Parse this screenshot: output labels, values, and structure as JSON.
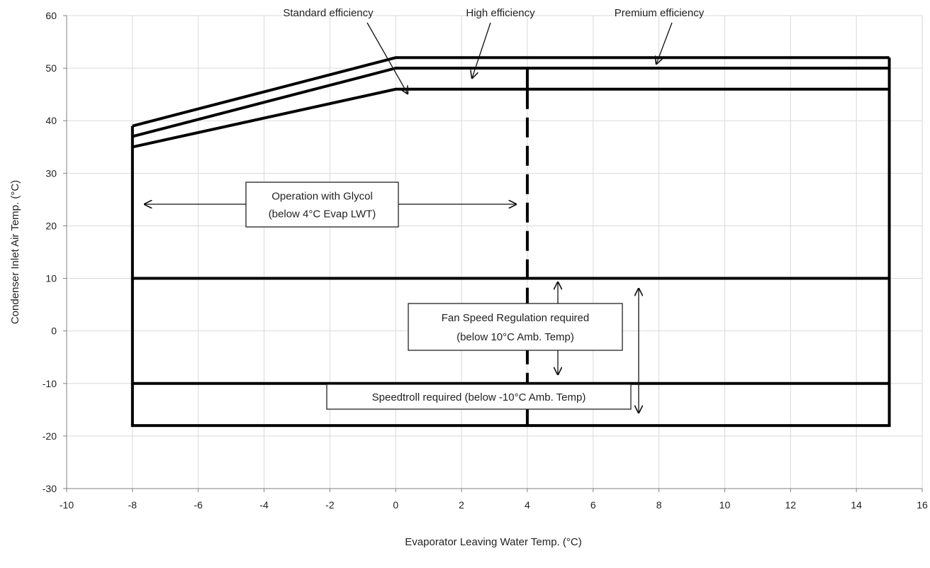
{
  "chart_data": {
    "type": "line",
    "title": "",
    "xlabel": "Evaporator Leaving  Water Temp. (°C)",
    "ylabel": "Condenser Inlet Air Temp. (°C)",
    "xlim": [
      -10,
      16
    ],
    "ylim": [
      -30,
      60
    ],
    "x_ticks": [
      -10,
      -8,
      -6,
      -4,
      -2,
      0,
      2,
      4,
      6,
      8,
      10,
      12,
      14,
      16
    ],
    "y_ticks": [
      -30,
      -20,
      -10,
      0,
      10,
      20,
      30,
      40,
      50,
      60
    ],
    "grid": true,
    "series": [
      {
        "name": "Premium efficiency",
        "points": [
          [
            -8,
            39
          ],
          [
            0,
            52
          ],
          [
            15,
            52
          ]
        ]
      },
      {
        "name": "High efficiency",
        "points": [
          [
            -8,
            37
          ],
          [
            0,
            50
          ],
          [
            15,
            50
          ]
        ]
      },
      {
        "name": "Standard efficiency",
        "points": [
          [
            -8,
            35
          ],
          [
            0,
            46
          ],
          [
            15,
            46
          ]
        ]
      }
    ],
    "envelope": {
      "left_x": -8,
      "right_x": 15,
      "bottom_y": -18,
      "left_top_y": 39,
      "right_top_y": 52
    },
    "divider_lines": [
      {
        "label": "10°C ambient limit",
        "y": 10
      },
      {
        "label": "-10°C ambient limit",
        "y": -10
      }
    ],
    "glycol_boundary_x": 4,
    "annotations": [
      {
        "id": "operation-with-glycol-box",
        "lines": [
          "Operation with Glycol",
          "(below 4°C Evap LWT)"
        ]
      },
      {
        "id": "fan-speed-regulation-box",
        "lines": [
          "Fan Speed Regulation required",
          "(below 10°C Amb. Temp)"
        ]
      },
      {
        "id": "speedtroll-box",
        "lines": [
          "Speedtroll required (below -10°C Amb. Temp)"
        ]
      }
    ]
  }
}
